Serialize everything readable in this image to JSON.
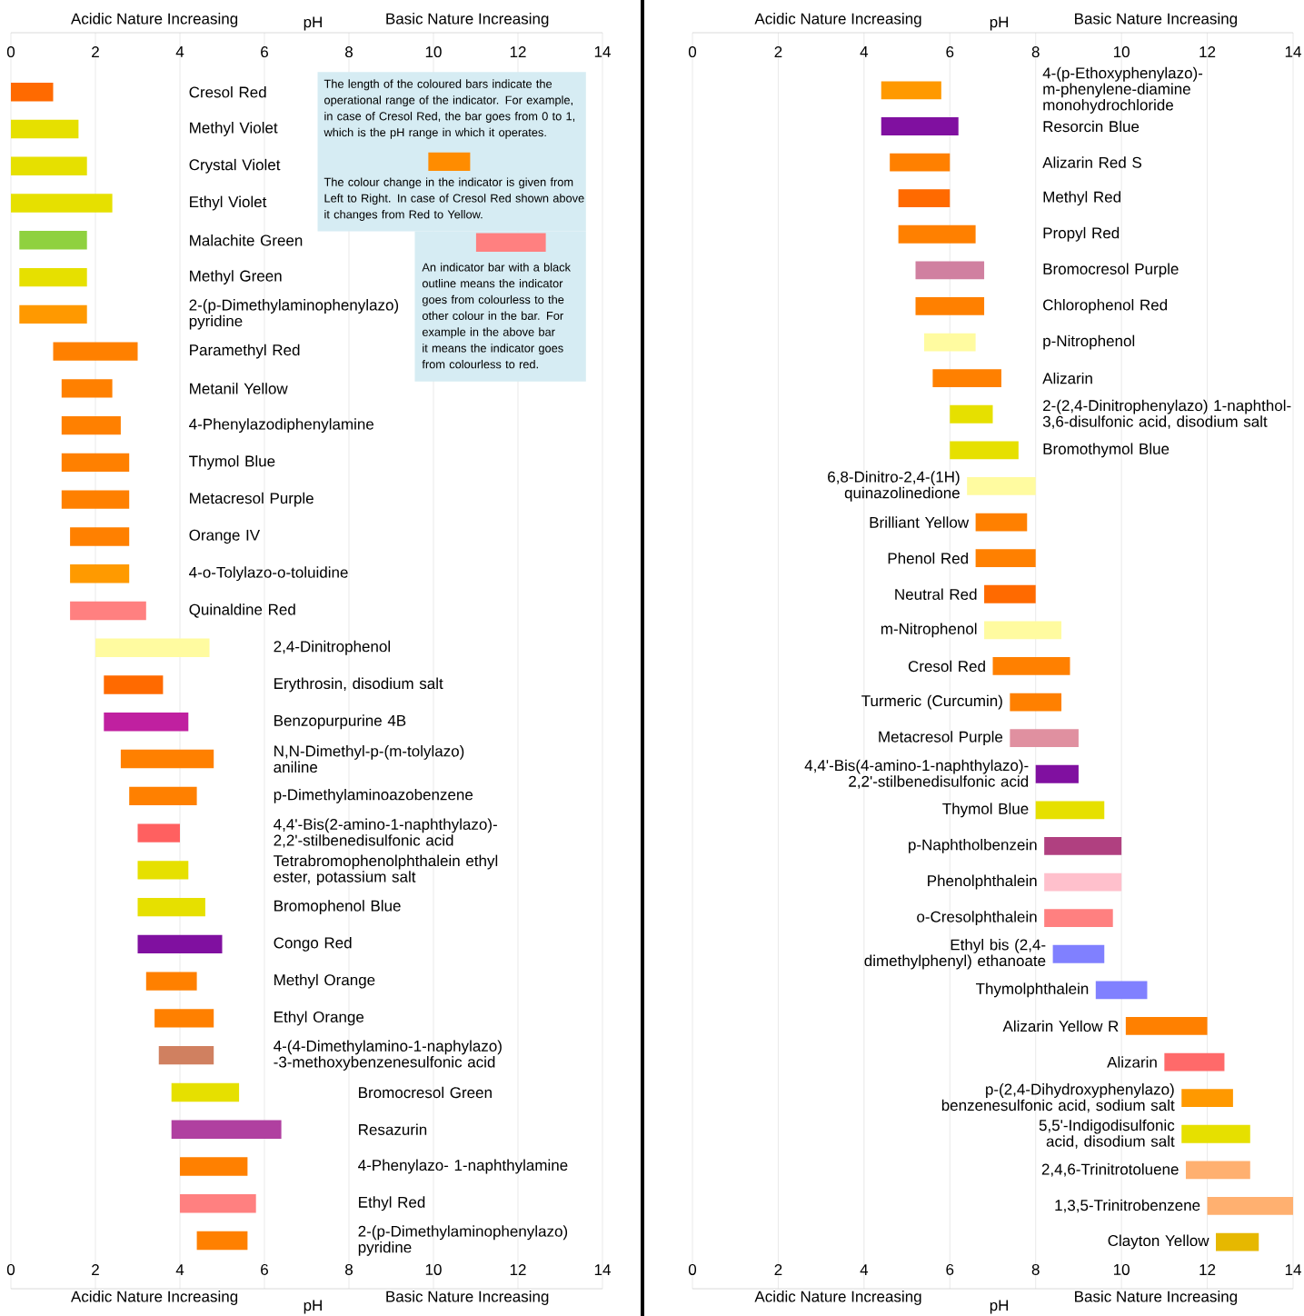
{
  "chart_data": [
    {
      "type": "bar",
      "orientation": "horizontal",
      "xlabel": "pH",
      "x2label": "pH",
      "xlim": [
        0,
        14
      ],
      "x2lim": [
        0,
        14
      ],
      "xticks": [
        0,
        2,
        4,
        6,
        8,
        10,
        12,
        14
      ],
      "x2ticks": [
        0,
        2,
        4,
        6,
        8,
        10,
        12,
        14
      ],
      "grid": "x",
      "categories": [
        "Cresol Red",
        "Methyl Violet",
        "Crystal Violet",
        "Ethyl Violet",
        "Malachite Green",
        "Methyl Green",
        "2-(p-Dimethylaminophenylazo) pyridine",
        "Paramethyl Red",
        "Metanil Yellow",
        "4-Phenylazodiphenylamine",
        "Thymol Blue",
        "Metacresol Purple",
        "Orange IV",
        "4-o-Tolylazo-o-toluidine",
        "Quinaldine Red",
        "2,4-Dinitrophenol",
        "Erythrosin, disodium salt",
        "Benzopurpurine 4B",
        "N,N-Dimethyl-p-(m-tolylazo) aniline",
        "p-Dimethylaminoazobenzene",
        "4,4'-Bis(2-amino-1-naphthylazo)-2,2'-stilbenedisulfonic acid",
        "Tetrabromophenolphthalein ethyl ester, potassium salt",
        "Bromophenol Blue",
        "Congo Red",
        "Methyl Orange",
        "Ethyl Orange",
        "4-(4-Dimethylamino-1-naphylazo) -3-methoxybenzenesulfonic acid",
        "Bromocresol Green",
        "Resazurin",
        "4-Phenylazo- 1-naphthylamine",
        "Ethyl Red",
        "2-(p-Dimethylaminophenylazo) pyridine"
      ],
      "base": [
        0,
        0,
        0,
        0,
        0.2,
        0.2,
        0.2,
        1.0,
        1.2,
        1.2,
        1.2,
        1.2,
        1.4,
        1.4,
        1.4,
        2.0,
        2.2,
        2.2,
        2.6,
        2.8,
        3.0,
        3.0,
        3.0,
        3.0,
        3.2,
        3.4,
        3.5,
        3.8,
        3.8,
        4.0,
        4.0,
        4.4
      ],
      "values": [
        1.0,
        1.6,
        1.8,
        2.4,
        1.6,
        1.6,
        1.6,
        2.0,
        1.2,
        1.4,
        1.6,
        1.6,
        1.4,
        1.4,
        1.8,
        2.7,
        1.4,
        2.0,
        2.2,
        1.6,
        1.0,
        1.2,
        1.6,
        2.0,
        1.2,
        1.4,
        1.3,
        1.6,
        2.6,
        1.6,
        1.8,
        1.2
      ],
      "colors": [
        "#ff6a00",
        "#e6e000",
        "#e6e000",
        "#e6e000",
        "#8fd13f",
        "#e6e000",
        "#ff9900",
        "#ff8000",
        "#ff8000",
        "#ff8000",
        "#ff8000",
        "#ff8000",
        "#ff8000",
        "#ff9a00",
        "#ff8080",
        "#fffba0",
        "#ff6a00",
        "#c020a0",
        "#ff8000",
        "#ff8000",
        "#ff6060",
        "#e6e000",
        "#e6e000",
        "#8010a0",
        "#ff8000",
        "#ff8000",
        "#d08060",
        "#e6e000",
        "#b040a0",
        "#ff8000",
        "#ff8080",
        "#ff8000"
      ],
      "annotations": [
        "Acidic Nature Increasing",
        "Basic Nature Increasing",
        "Acidic Nature Increasing",
        "Basic Nature Increasing",
        "The length of the coloured bars indicate the operational range of the indicator. For example, in case of Cresol Red, the bar goes from 0 to 1, which is the pH range in which it operates.",
        "The colour change in the indicator is given from Left to Right. In case of Cresol Red shown above it changes from Red to Yellow.",
        "An indicator bar with a black outline means the indicator goes from colourless to the other colour in the bar. For example in the above bar it means the indicator goes from colourless to red."
      ]
    },
    {
      "type": "bar",
      "orientation": "horizontal",
      "xlabel": "pH",
      "x2label": "pH",
      "xlim": [
        0,
        14
      ],
      "x2lim": [
        0,
        14
      ],
      "xticks": [
        0,
        2,
        4,
        6,
        8,
        10,
        12,
        14
      ],
      "x2ticks": [
        0,
        2,
        4,
        6,
        8,
        10,
        12,
        14
      ],
      "grid": "x",
      "categories": [
        "4-(p-Ethoxyphenylazo)- m-phenylene-diamine monohydrochloride",
        "Resorcin Blue",
        "Alizarin Red S",
        "Methyl Red",
        "Propyl Red",
        "Bromocresol Purple",
        "Chlorophenol Red",
        "p-Nitrophenol",
        "Alizarin",
        "2-(2,4-Dinitrophenylazo) 1-naphthol-3,6-disulfonic acid, disodium salt",
        "Bromothymol Blue",
        "6,8-Dinitro-2,4-(1H) quinazolinedione",
        "Brilliant Yellow",
        "Phenol Red",
        "Neutral Red",
        "m-Nitrophenol",
        "Cresol Red",
        "Turmeric (Curcumin)",
        "Metacresol Purple",
        "4,4'-Bis(4-amino-1-naphthylazo)- 2,2'-stilbenedisulfonic acid",
        "Thymol Blue",
        "p-Naphtholbenzein",
        "Phenolphthalein",
        "o-Cresolphthalein",
        "Ethyl bis (2,4-dimethylphenyl) ethanoate",
        "Thymolphthalein",
        "Alizarin Yellow R",
        "Alizarin",
        "p-(2,4-Dihydroxyphenylazo) benzenesulfonic acid, sodium salt",
        "5,5'-Indigodisulfonic acid, disodium salt",
        "2,4,6-Trinitrotoluene",
        "1,3,5-Trinitrobenzene",
        "Clayton Yellow"
      ],
      "base": [
        4.4,
        4.4,
        4.6,
        4.8,
        4.8,
        5.2,
        5.2,
        5.4,
        5.6,
        6.0,
        6.0,
        6.4,
        6.6,
        6.6,
        6.8,
        6.8,
        7.0,
        7.4,
        7.4,
        8.0,
        8.0,
        8.2,
        8.2,
        8.2,
        8.4,
        9.4,
        10.1,
        11.0,
        11.4,
        11.4,
        11.5,
        12.0,
        12.2
      ],
      "values": [
        1.4,
        1.8,
        1.4,
        1.2,
        1.8,
        1.6,
        1.6,
        1.2,
        1.6,
        1.0,
        1.6,
        1.6,
        1.2,
        1.4,
        1.2,
        1.8,
        1.8,
        1.2,
        1.6,
        1.0,
        1.6,
        1.8,
        1.8,
        1.6,
        1.2,
        1.2,
        1.9,
        1.4,
        1.2,
        1.6,
        1.5,
        2.0,
        1.0
      ],
      "colors": [
        "#ff9900",
        "#8010a0",
        "#ff8000",
        "#ff6a00",
        "#ff8000",
        "#d080a0",
        "#ff8000",
        "#fffba0",
        "#ff8000",
        "#e6e000",
        "#e6e000",
        "#fffba0",
        "#ff8000",
        "#ff8000",
        "#ff6a00",
        "#fffba0",
        "#ff8000",
        "#ff8000",
        "#e090a0",
        "#8010a0",
        "#e6e000",
        "#b04080",
        "#ffc0cc",
        "#ff8080",
        "#8080ff",
        "#8080ff",
        "#ff8000",
        "#ff6a6a",
        "#ff9900",
        "#e6e000",
        "#ffb070",
        "#ffb070",
        "#e6b800"
      ],
      "annotations": [
        "Acidic Nature Increasing",
        "Basic Nature Increasing",
        "Acidic Nature Increasing",
        "Basic Nature Increasing"
      ]
    }
  ]
}
